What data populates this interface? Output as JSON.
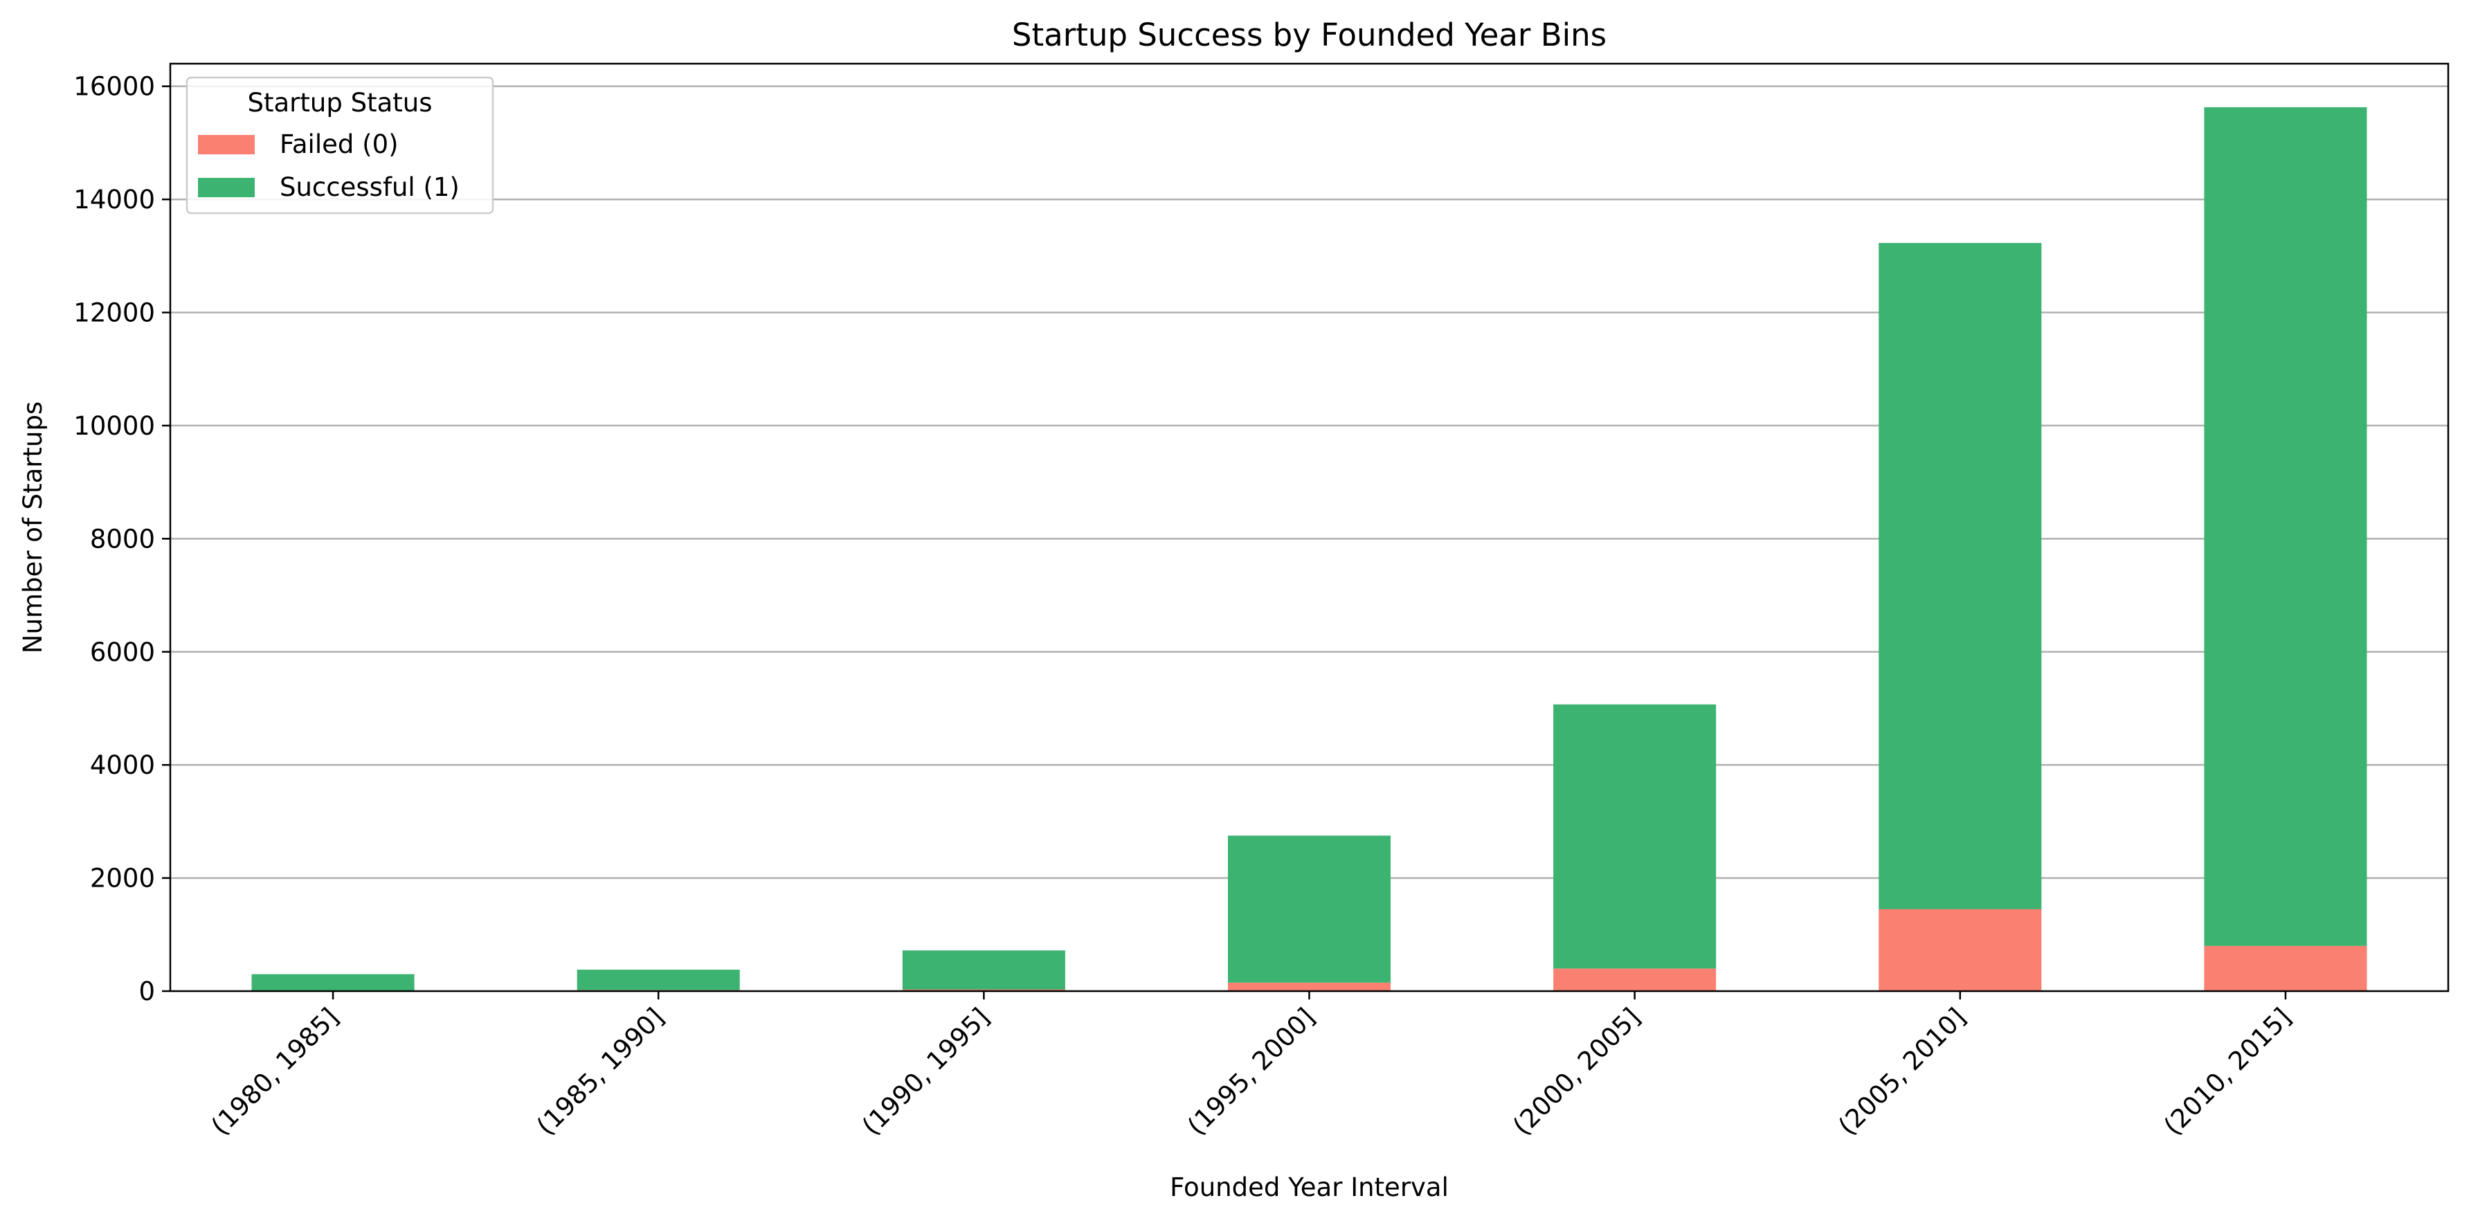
{
  "chart_data": {
    "type": "bar",
    "stacked": true,
    "title": "Startup Success by Founded Year Bins",
    "xlabel": "Founded Year Interval",
    "ylabel": "Number of Startups",
    "categories": [
      "(1980, 1985]",
      "(1985, 1990]",
      "(1990, 1995]",
      "(1995, 2000]",
      "(2000, 2005]",
      "(2005, 2010]",
      "(2010, 2015]"
    ],
    "series": [
      {
        "name": "Failed (0)",
        "color": "#fa8072",
        "values": [
          10,
          20,
          30,
          150,
          400,
          1450,
          800
        ]
      },
      {
        "name": "Successful (1)",
        "color": "#3cb371",
        "values": [
          290,
          360,
          690,
          2600,
          4670,
          11780,
          14830
        ]
      }
    ],
    "ylim": [
      0,
      16400
    ],
    "yticks": [
      0,
      2000,
      4000,
      6000,
      8000,
      10000,
      12000,
      14000,
      16000
    ],
    "grid": {
      "y": true,
      "x": false
    },
    "legend": {
      "title": "Startup Status",
      "position": "top-left"
    }
  }
}
